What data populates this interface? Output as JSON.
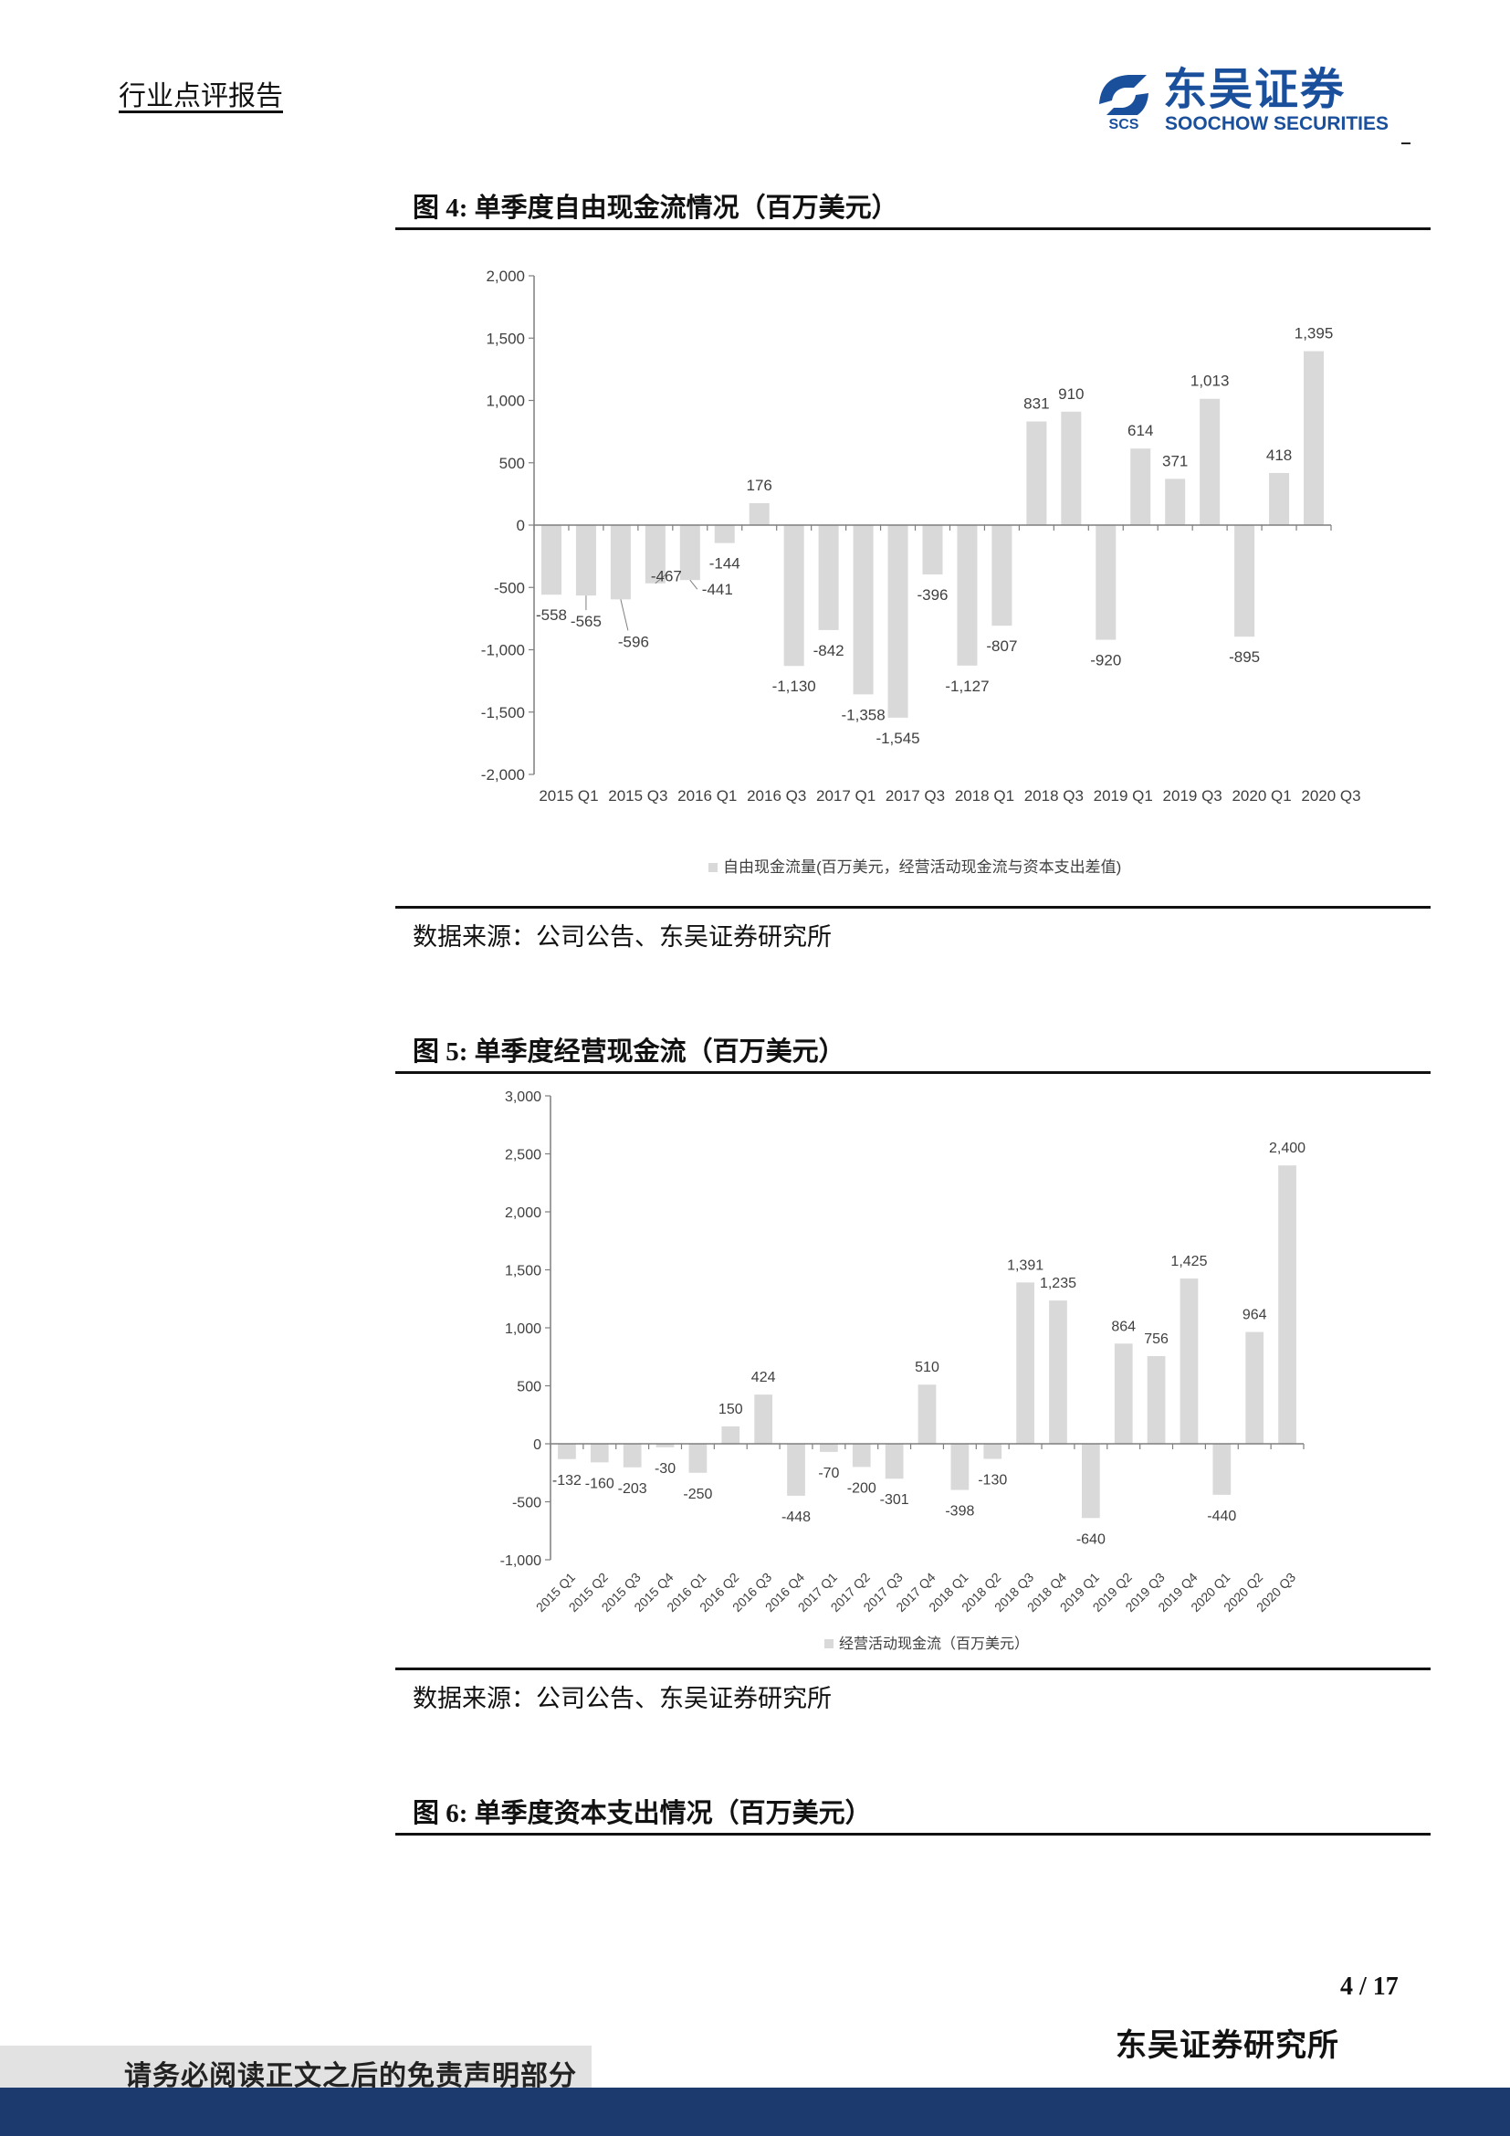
{
  "header": {
    "title": "行业点评报告",
    "logo_cn": "东吴证券",
    "logo_en": "SOOCHOW SECURITIES",
    "logo_mark_text": "SCS"
  },
  "figure4": {
    "title": "图 4:  单季度自由现金流情况（百万美元）",
    "source": "数据来源：公司公告、东吴证券研究所"
  },
  "figure5": {
    "title": "图 5:  单季度经营现金流（百万美元）",
    "source": "数据来源：公司公告、东吴证券研究所"
  },
  "figure6": {
    "title": "图 6:  单季度资本支出情况（百万美元）"
  },
  "footer": {
    "page": "4 / 17",
    "org": "东吴证券研究所",
    "disclaimer": "请务必阅读正文之后的免责声明部分"
  },
  "colors": {
    "bar": "#d9d9d9",
    "brand": "#1a4f9c",
    "footer_band": "#1c3a6e"
  },
  "chart_data": [
    {
      "type": "bar",
      "categories": [
        "2015 Q1",
        "2015 Q2",
        "2015 Q3",
        "2015 Q4",
        "2016 Q1",
        "2016 Q2",
        "2016 Q3",
        "2016 Q4",
        "2017 Q1",
        "2017 Q2",
        "2017 Q3",
        "2017 Q4",
        "2018 Q1",
        "2018 Q2",
        "2018 Q3",
        "2018 Q4",
        "2019 Q1",
        "2019 Q2",
        "2019 Q3",
        "2019 Q4",
        "2020 Q1",
        "2020 Q2",
        "2020 Q3"
      ],
      "tick_labels": [
        "2015 Q1",
        "2015 Q3",
        "2016 Q1",
        "2016 Q3",
        "2017 Q1",
        "2017 Q3",
        "2018 Q1",
        "2018 Q3",
        "2019 Q1",
        "2019 Q3",
        "2020 Q1",
        "2020 Q3"
      ],
      "series": [
        {
          "name": "自由现金流量(百万美元，经营活动现金流与资本支出差值)",
          "values": [
            -558,
            -565,
            -596,
            -467,
            -441,
            -144,
            176,
            -1130,
            -842,
            -1358,
            -1545,
            -396,
            -1127,
            -807,
            831,
            910,
            -920,
            614,
            371,
            1013,
            -895,
            418,
            1395
          ]
        }
      ],
      "data_labels": [
        "-558",
        "-565",
        "-596",
        "-467",
        "-441",
        "-144",
        "176",
        "-1,130",
        "-842",
        "-1,358",
        "-1,545",
        "-396",
        "-1,127",
        "-807",
        "831",
        "910",
        "-920",
        "614",
        "371",
        "1,013",
        "-895",
        "418",
        "1,395"
      ],
      "yticks": [
        "2,000",
        "1,500",
        "1,000",
        "500",
        "0",
        "-500",
        "-1,000",
        "-1,500",
        "-2,000"
      ],
      "ylim": [
        -2000,
        2000
      ],
      "legend_position": "bottom",
      "grid": false
    },
    {
      "type": "bar",
      "categories": [
        "2015 Q1",
        "2015 Q2",
        "2015 Q3",
        "2015 Q4",
        "2016 Q1",
        "2016 Q2",
        "2016 Q3",
        "2016 Q4",
        "2017 Q1",
        "2017 Q2",
        "2017 Q3",
        "2017 Q4",
        "2018 Q1",
        "2018 Q2",
        "2018 Q3",
        "2018 Q4",
        "2019 Q1",
        "2019 Q2",
        "2019 Q3",
        "2019 Q4",
        "2020 Q1",
        "2020 Q2",
        "2020 Q3"
      ],
      "series": [
        {
          "name": "经营活动现金流（百万美元）",
          "values": [
            -132,
            -160,
            -203,
            -30,
            -250,
            150,
            424,
            -448,
            -70,
            -200,
            -301,
            510,
            -398,
            -130,
            1391,
            1235,
            -640,
            864,
            756,
            1425,
            -440,
            964,
            2400
          ]
        }
      ],
      "data_labels": [
        "-132",
        "-160",
        "-203",
        "-30",
        "-250",
        "150",
        "424",
        "-448",
        "-70",
        "-200",
        "-301",
        "510",
        "-398",
        "-130",
        "1,391",
        "1,235",
        "-640",
        "864",
        "756",
        "1,425",
        "-440",
        "964",
        "2,400"
      ],
      "yticks": [
        "3,000",
        "2,500",
        "2,000",
        "1,500",
        "1,000",
        "500",
        "0",
        "-500",
        "-1,000"
      ],
      "ylim": [
        -1000,
        3000
      ],
      "legend_position": "bottom",
      "grid": false
    }
  ]
}
